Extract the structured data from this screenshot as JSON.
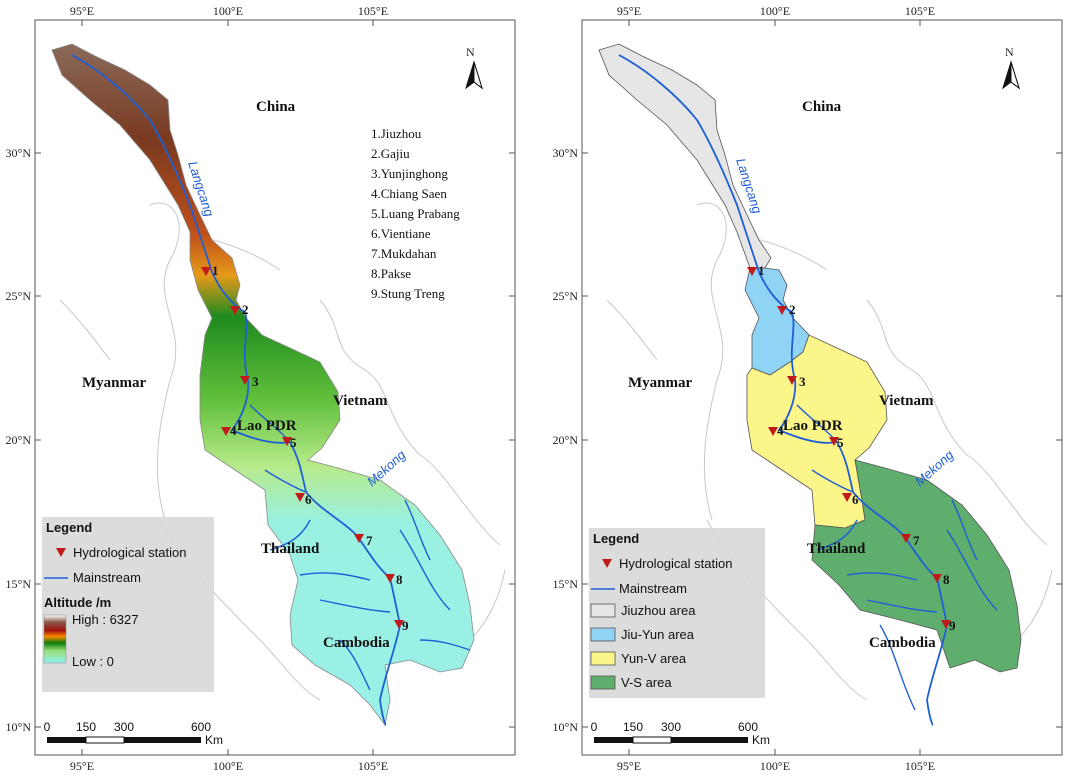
{
  "maps": [
    {
      "id": "altitude-map",
      "lon_ticks": [
        "95°E",
        "100°E",
        "105°E"
      ],
      "lat_ticks": [
        "30°N",
        "25°N",
        "20°N",
        "15°N",
        "10°N"
      ],
      "north": "N",
      "countries": [
        "China",
        "Myanmar",
        "Vietnam",
        "Lao PDR",
        "Thailand",
        "Cambodia"
      ],
      "rivers": [
        "Langcang",
        "Mekong"
      ],
      "station_list": [
        "1.Jiuzhou",
        "2.Gajiu",
        "3.Yunjinghong",
        "4.Chiang Saen",
        "5.Luang Prabang",
        "6.Vientiane",
        "7.Mukdahan",
        "8.Pakse",
        "9.Stung Treng"
      ],
      "stations": [
        "1",
        "2",
        "3",
        "4",
        "5",
        "6",
        "7",
        "8",
        "9"
      ],
      "legend": {
        "title": "Legend",
        "station": "Hydrological station",
        "mainstream": "Mainstream",
        "altitude_title": "Altitude /m",
        "high": "High : 6327",
        "low": "Low : 0"
      },
      "scale": {
        "labels": [
          "0",
          "150",
          "300",
          "600"
        ],
        "unit": "Km"
      }
    },
    {
      "id": "subbasin-map",
      "lon_ticks": [
        "95°E",
        "100°E",
        "105°E"
      ],
      "lat_ticks": [
        "30°N",
        "25°N",
        "20°N",
        "15°N",
        "10°N"
      ],
      "north": "N",
      "countries": [
        "China",
        "Myanmar",
        "Vietnam",
        "Lao PDR",
        "Thailand",
        "Cambodia"
      ],
      "rivers": [
        "Langcang",
        "Mekong"
      ],
      "stations": [
        "1",
        "2",
        "3",
        "4",
        "5",
        "6",
        "7",
        "8",
        "9"
      ],
      "legend": {
        "title": "Legend",
        "station": "Hydrological station",
        "mainstream": "Mainstream",
        "areas": [
          {
            "label": "Jiuzhou area",
            "color": "#e6e6e6"
          },
          {
            "label": "Jiu-Yun area",
            "color": "#8fd3f5"
          },
          {
            "label": "Yun-V area",
            "color": "#fbf58a"
          },
          {
            "label": "V-S area",
            "color": "#5fae6e"
          }
        ]
      },
      "scale": {
        "labels": [
          "0",
          "150",
          "300",
          "600"
        ],
        "unit": "Km"
      }
    }
  ]
}
